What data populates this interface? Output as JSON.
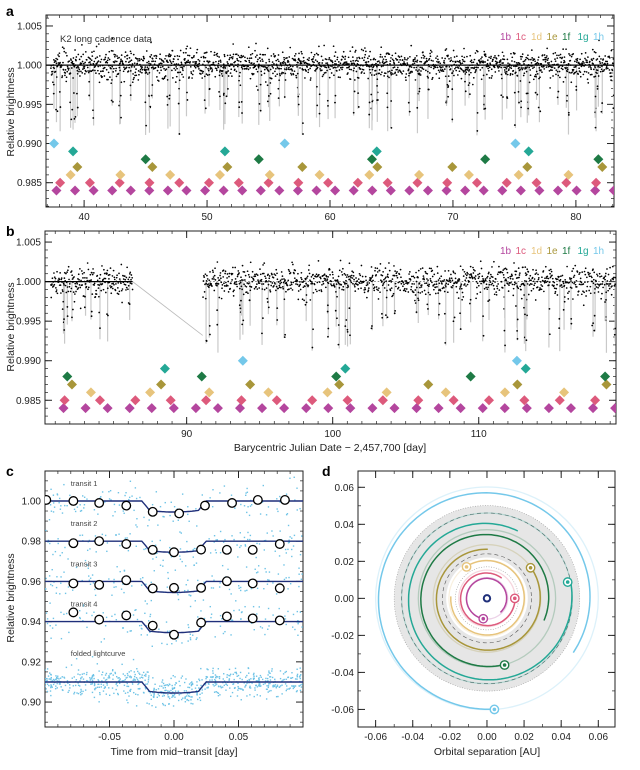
{
  "chart_data": [
    {
      "id": "a",
      "panel_label": "a",
      "type": "scatter",
      "title": "",
      "annotation": "K2 long cadence data",
      "ylabel": "Relative brightness",
      "xlabel": "",
      "xlim": [
        36.9,
        83.1
      ],
      "ylim": [
        0.9819,
        1.0064
      ],
      "xticks": [
        40,
        50,
        60,
        70,
        80
      ],
      "xtick_labels": [
        "40",
        "50",
        "60",
        "70",
        "80"
      ],
      "yticks": [
        1.005,
        1.0,
        0.995,
        0.99,
        0.985
      ],
      "ytick_labels": [
        "1.005",
        "1.000",
        "0.995",
        "0.990",
        "0.985"
      ],
      "baseline": 1.0,
      "noise_sigma": 0.0009,
      "data_gap": null
    },
    {
      "id": "b",
      "panel_label": "b",
      "type": "scatter",
      "title": "",
      "annotation": "",
      "ylabel": "Relative brightness",
      "xlabel": "Barycentric Julian Date − 2,457,700 [day]",
      "xlim": [
        80.3,
        119.4
      ],
      "ylim": [
        0.982,
        1.0064
      ],
      "xticks": [
        90,
        100,
        110
      ],
      "xtick_labels": [
        "90",
        "100",
        "110"
      ],
      "yticks": [
        1.005,
        1.0,
        0.995,
        0.99,
        0.985
      ],
      "ytick_labels": [
        "1.005",
        "1.000",
        "0.995",
        "0.990",
        "0.985"
      ],
      "baseline": 1.0,
      "noise_sigma": 0.0009,
      "data_gap": [
        86.3,
        91.1
      ]
    },
    {
      "id": "c",
      "panel_label": "c",
      "type": "scatter",
      "xlabel": "Time from mid−transit [day]",
      "ylabel": "Relative brightness",
      "xlim": [
        -0.1,
        0.1
      ],
      "ylim": [
        0.8876,
        1.0149
      ],
      "xticks": [
        -0.05,
        0.0,
        0.05
      ],
      "xtick_labels": [
        "-0.05",
        "0.00",
        "0.05"
      ],
      "yticks": [
        1.0,
        0.98,
        0.96,
        0.94,
        0.92,
        0.9
      ],
      "ytick_labels": [
        "1.00",
        "0.98",
        "0.96",
        "0.94",
        "0.92",
        "0.90"
      ],
      "transit_model": {
        "depth": 0.0055,
        "half_duration": 0.025,
        "ingress": 0.006
      },
      "curves": [
        {
          "label": "transit 1",
          "offset": 1.0,
          "binned_x": [
            -0.099,
            -0.078,
            -0.058,
            -0.037,
            -0.0165,
            0.004,
            0.024,
            0.045,
            0.065,
            0.086
          ],
          "binned_y": [
            1.0005,
            1.0,
            0.999,
            0.9977,
            0.9946,
            0.9938,
            0.9977,
            0.999,
            1.0005,
            1.0005
          ]
        },
        {
          "label": "transit 2",
          "offset": 0.98,
          "binned_x": [
            -0.078,
            -0.058,
            -0.037,
            -0.0165,
            0.0,
            0.021,
            0.041,
            0.061,
            0.082
          ],
          "binned_y": [
            0.979,
            0.98,
            0.9786,
            0.9757,
            0.9745,
            0.9758,
            0.9757,
            0.9757,
            0.9786
          ]
        },
        {
          "label": "transit 3",
          "offset": 0.96,
          "binned_x": [
            -0.078,
            -0.058,
            -0.037,
            -0.0165,
            0.0,
            0.021,
            0.041,
            0.061,
            0.082
          ],
          "binned_y": [
            0.959,
            0.9583,
            0.9606,
            0.9565,
            0.9568,
            0.9568,
            0.9601,
            0.959,
            0.9566
          ]
        },
        {
          "label": "transit 4",
          "offset": 0.94,
          "binned_x": [
            -0.078,
            -0.058,
            -0.037,
            -0.0165,
            0.0,
            0.021,
            0.041,
            0.061,
            0.082
          ],
          "binned_y": [
            0.9446,
            0.941,
            0.9431,
            0.938,
            0.9335,
            0.9395,
            0.9426,
            0.9416,
            0.9406
          ]
        },
        {
          "label": "folded lightcurve",
          "offset": 0.91,
          "binned_x": [],
          "binned_y": []
        }
      ],
      "colors": {
        "points": "#6ec3e6",
        "model": "#1f2f7a"
      }
    },
    {
      "id": "d",
      "panel_label": "d",
      "type": "scatter",
      "xlabel": "Orbital separation [AU]",
      "ylabel": "",
      "xlim": [
        -0.0695,
        0.069
      ],
      "ylim": [
        -0.0695,
        0.0688
      ],
      "xticks": [
        -0.06,
        -0.04,
        -0.02,
        0.0,
        0.02,
        0.04,
        0.06
      ],
      "xtick_labels": [
        "-0.06",
        "-0.04",
        "-0.02",
        "0.00",
        "0.02",
        "0.04",
        "0.06"
      ],
      "yticks": [
        0.06,
        0.04,
        0.02,
        0.0,
        -0.02,
        -0.04,
        -0.06
      ],
      "ytick_labels": [
        "0.06",
        "0.04",
        "0.02",
        "0.00",
        "-0.02",
        "-0.04",
        "-0.06"
      ],
      "habitable_zone_au": [
        0.022,
        0.05
      ],
      "orbits": [
        {
          "planet": "1b",
          "r_start": 0.0105,
          "r_end": 0.0112,
          "end": [
            -0.002,
            -0.011
          ]
        },
        {
          "planet": "1c",
          "r_start": 0.0135,
          "r_end": 0.0152,
          "end": [
            0.015,
            0.0
          ]
        },
        {
          "planet": "1d",
          "r_start": 0.0195,
          "r_end": 0.0205,
          "end": [
            -0.011,
            0.017
          ]
        },
        {
          "planet": "1e",
          "r_start": 0.0265,
          "r_end": 0.029,
          "end": [
            0.0235,
            0.0165
          ]
        },
        {
          "planet": "1f",
          "r_start": 0.033,
          "r_end": 0.037,
          "end": [
            0.0095,
            -0.036
          ]
        },
        {
          "planet": "1g",
          "r_start": 0.04,
          "r_end": 0.046,
          "end": [
            0.0435,
            0.0088
          ]
        },
        {
          "planet": "1h",
          "r_start": 0.055,
          "r_end": 0.06,
          "end": [
            0.004,
            -0.06
          ]
        }
      ]
    }
  ],
  "planets": [
    {
      "label": "1b",
      "color": "#b4469e",
      "period": 1.5109,
      "epoch": 37.75,
      "marker_level": 0.984
    },
    {
      "label": "1c",
      "color": "#dd5a7c",
      "period": 2.4218,
      "epoch": 38.05,
      "marker_level": 0.985
    },
    {
      "label": "1d",
      "color": "#e7c47c",
      "period": 4.0497,
      "epoch": 38.9,
      "marker_level": 0.986
    },
    {
      "label": "1e",
      "color": "#a8963a",
      "period": 6.0996,
      "epoch": 39.45,
      "marker_level": 0.987
    },
    {
      "label": "1f",
      "color": "#1e7a45",
      "period": 9.2067,
      "epoch": 45.0,
      "marker_level": 0.988
    },
    {
      "label": "1g",
      "color": "#24a896",
      "period": 12.3529,
      "epoch": 39.1,
      "marker_level": 0.989
    },
    {
      "label": "1h",
      "color": "#74c8ea",
      "period": 18.766,
      "epoch": 37.55,
      "marker_level": 0.99
    }
  ]
}
